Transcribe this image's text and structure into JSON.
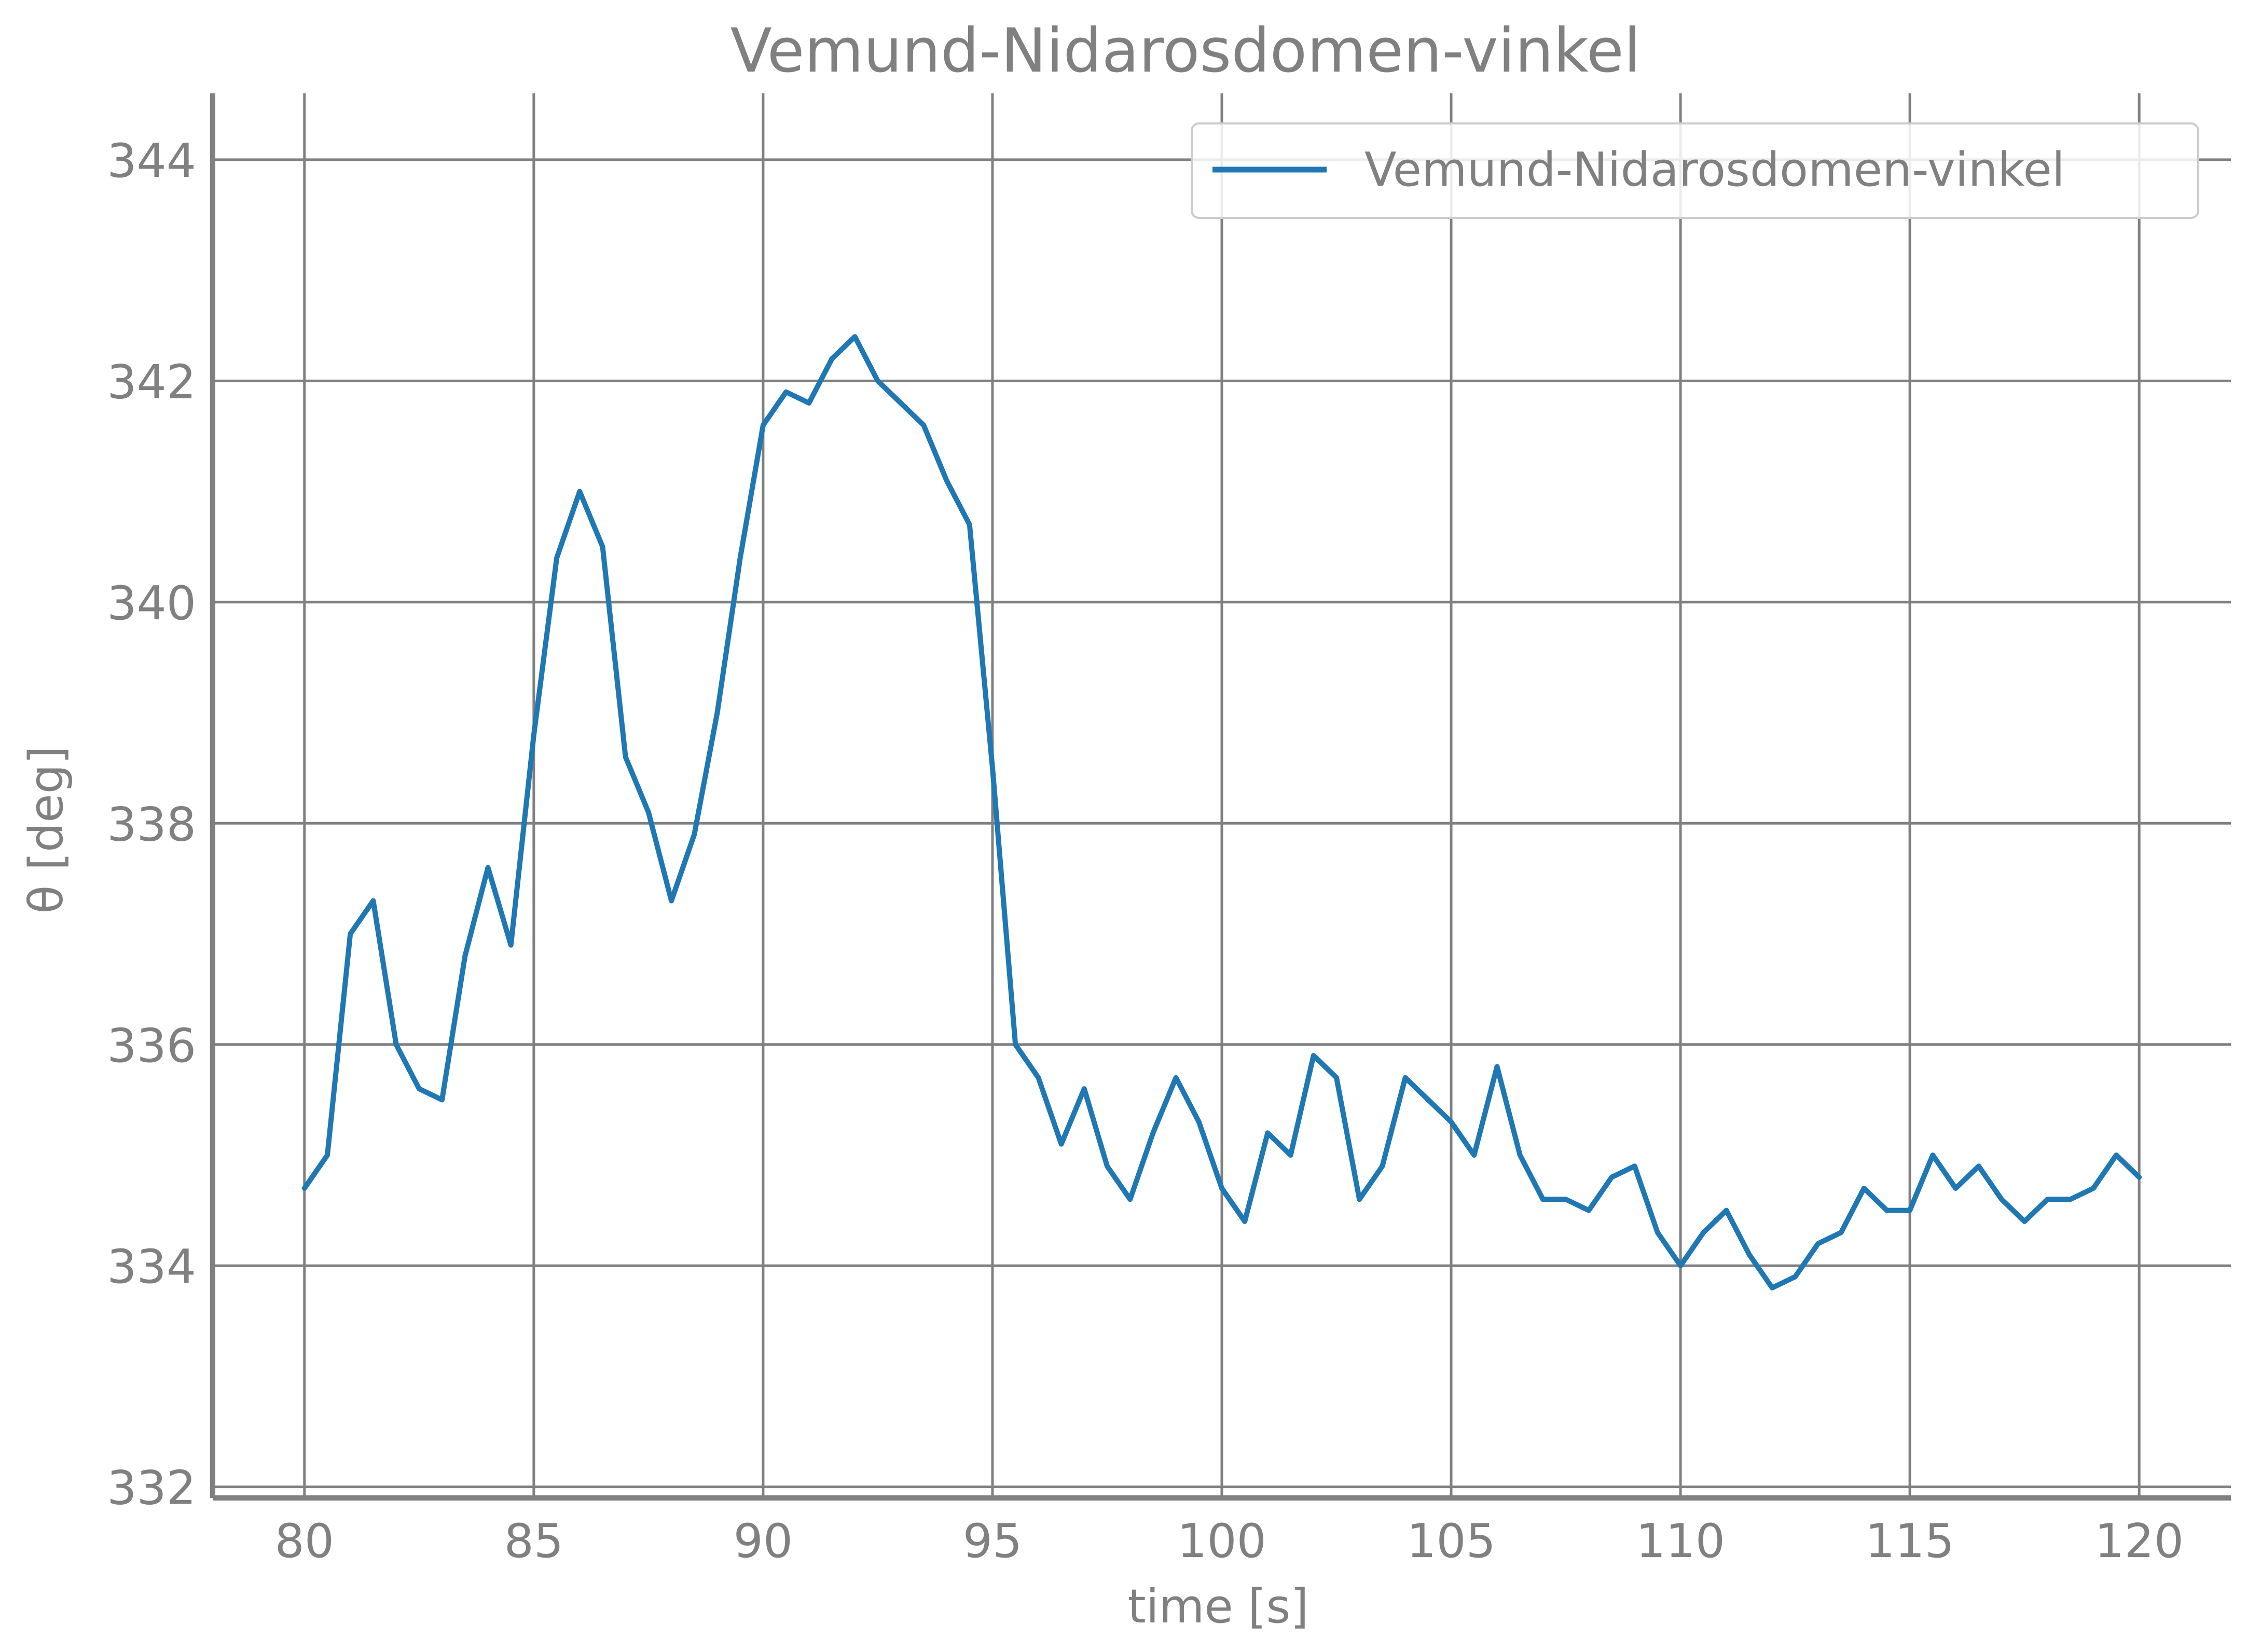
{
  "chart_data": {
    "type": "line",
    "title": "Vemund-Nidarosdomen-vinkel",
    "xlabel": "time [s]",
    "ylabel": "θ [deg]",
    "xlim": [
      78,
      122
    ],
    "ylim": [
      331.9,
      344.6
    ],
    "xticks": [
      80,
      85,
      90,
      95,
      100,
      105,
      110,
      115,
      120
    ],
    "yticks": [
      332,
      334,
      336,
      338,
      340,
      342,
      344
    ],
    "grid": true,
    "legend_position": "top-right",
    "colors": {
      "series": "#1f77b4",
      "text": "#808080",
      "grid": "#808080",
      "spine": "#808080"
    },
    "series": [
      {
        "name": "Vemund-Nidarosdomen-vinkel",
        "x": [
          80,
          80.5,
          81,
          81.5,
          82,
          82.5,
          83,
          83.5,
          84,
          84.5,
          85,
          85.5,
          86,
          86.5,
          87,
          87.5,
          88,
          88.5,
          89,
          89.5,
          90,
          90.5,
          91,
          91.5,
          92,
          92.5,
          93,
          93.5,
          94,
          94.5,
          95,
          95.5,
          96,
          96.5,
          97,
          97.5,
          98,
          98.5,
          99,
          99.5,
          100,
          100.5,
          101,
          101.5,
          102,
          102.5,
          103,
          103.5,
          104,
          104.5,
          105,
          105.5,
          106,
          106.5,
          107,
          107.5,
          108,
          108.5,
          109,
          109.5,
          110,
          110.5,
          111,
          111.5,
          112,
          112.5,
          113,
          113.5,
          114,
          114.5,
          115,
          115.5,
          116,
          116.5,
          117,
          117.5,
          118,
          118.5,
          119,
          119.5,
          120
        ],
        "y": [
          334.7,
          335.0,
          337.0,
          337.3,
          336.0,
          335.6,
          335.5,
          336.8,
          337.6,
          336.9,
          338.8,
          340.4,
          341.0,
          340.5,
          338.6,
          338.1,
          337.3,
          337.9,
          339.0,
          340.4,
          341.6,
          341.9,
          341.8,
          342.2,
          342.4,
          342.0,
          341.8,
          341.6,
          341.1,
          340.7,
          338.5,
          336.0,
          335.7,
          335.1,
          335.6,
          334.9,
          334.6,
          335.2,
          335.7,
          335.3,
          334.7,
          334.4,
          335.2,
          335.0,
          335.9,
          335.7,
          334.6,
          334.9,
          335.7,
          335.5,
          335.3,
          335.0,
          335.8,
          335.0,
          334.6,
          334.6,
          334.5,
          334.8,
          334.9,
          334.3,
          334.0,
          334.3,
          334.5,
          334.1,
          333.8,
          333.9,
          334.2,
          334.3,
          334.7,
          334.5,
          334.5,
          335.0,
          334.7,
          334.9,
          334.6,
          334.4,
          334.6,
          334.6,
          334.7,
          335.0,
          334.8
        ]
      }
    ]
  }
}
